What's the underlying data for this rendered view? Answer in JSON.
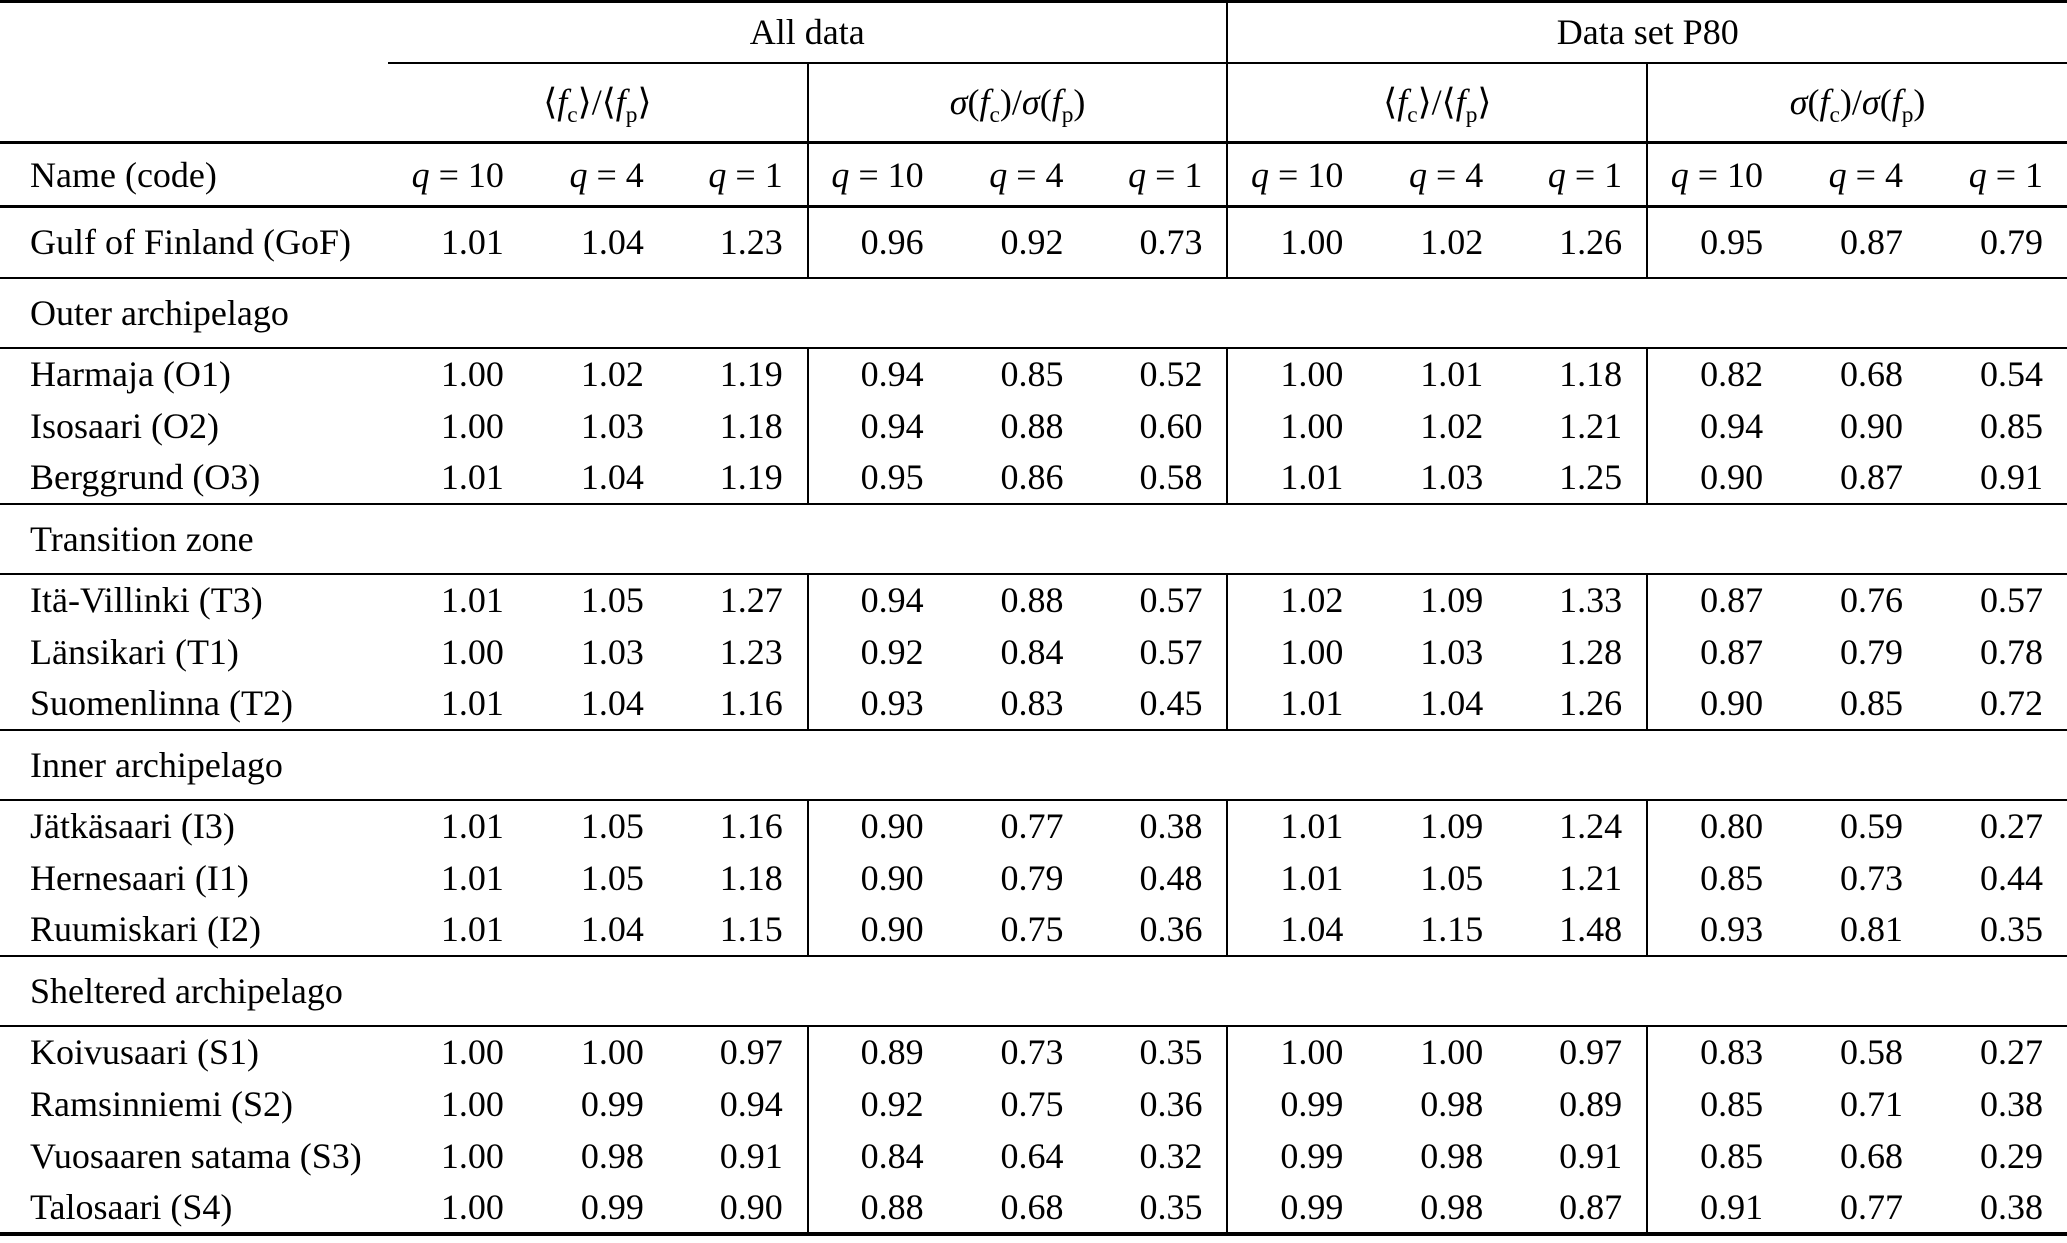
{
  "table": {
    "groups": [
      {
        "label": "All data"
      },
      {
        "label": "Data set P80"
      }
    ],
    "subgroup_labels": {
      "mean": "⟨fc⟩/⟨fp⟩",
      "sigma": "σ(fc)/σ(fp)"
    },
    "name_header": "Name (code)",
    "q_labels": [
      "q = 10",
      "q = 4",
      "q = 1"
    ],
    "rows": [
      {
        "type": "data",
        "name": "Gulf of Finland (GoF)",
        "values": [
          "1.01",
          "1.04",
          "1.23",
          "0.96",
          "0.92",
          "0.73",
          "1.00",
          "1.02",
          "1.26",
          "0.95",
          "0.87",
          "0.79"
        ]
      },
      {
        "type": "section",
        "name": "Outer archipelago"
      },
      {
        "type": "data",
        "name": "Harmaja (O1)",
        "values": [
          "1.00",
          "1.02",
          "1.19",
          "0.94",
          "0.85",
          "0.52",
          "1.00",
          "1.01",
          "1.18",
          "0.82",
          "0.68",
          "0.54"
        ]
      },
      {
        "type": "data",
        "name": "Isosaari (O2)",
        "values": [
          "1.00",
          "1.03",
          "1.18",
          "0.94",
          "0.88",
          "0.60",
          "1.00",
          "1.02",
          "1.21",
          "0.94",
          "0.90",
          "0.85"
        ]
      },
      {
        "type": "data",
        "name": "Berggrund (O3)",
        "values": [
          "1.01",
          "1.04",
          "1.19",
          "0.95",
          "0.86",
          "0.58",
          "1.01",
          "1.03",
          "1.25",
          "0.90",
          "0.87",
          "0.91"
        ]
      },
      {
        "type": "section",
        "name": "Transition zone"
      },
      {
        "type": "data",
        "name": "Itä-Villinki (T3)",
        "values": [
          "1.01",
          "1.05",
          "1.27",
          "0.94",
          "0.88",
          "0.57",
          "1.02",
          "1.09",
          "1.33",
          "0.87",
          "0.76",
          "0.57"
        ]
      },
      {
        "type": "data",
        "name": "Länsikari (T1)",
        "values": [
          "1.00",
          "1.03",
          "1.23",
          "0.92",
          "0.84",
          "0.57",
          "1.00",
          "1.03",
          "1.28",
          "0.87",
          "0.79",
          "0.78"
        ]
      },
      {
        "type": "data",
        "name": "Suomenlinna (T2)",
        "values": [
          "1.01",
          "1.04",
          "1.16",
          "0.93",
          "0.83",
          "0.45",
          "1.01",
          "1.04",
          "1.26",
          "0.90",
          "0.85",
          "0.72"
        ]
      },
      {
        "type": "section",
        "name": "Inner archipelago"
      },
      {
        "type": "data",
        "name": "Jätkäsaari (I3)",
        "values": [
          "1.01",
          "1.05",
          "1.16",
          "0.90",
          "0.77",
          "0.38",
          "1.01",
          "1.09",
          "1.24",
          "0.80",
          "0.59",
          "0.27"
        ]
      },
      {
        "type": "data",
        "name": "Hernesaari (I1)",
        "values": [
          "1.01",
          "1.05",
          "1.18",
          "0.90",
          "0.79",
          "0.48",
          "1.01",
          "1.05",
          "1.21",
          "0.85",
          "0.73",
          "0.44"
        ]
      },
      {
        "type": "data",
        "name": "Ruumiskari (I2)",
        "values": [
          "1.01",
          "1.04",
          "1.15",
          "0.90",
          "0.75",
          "0.36",
          "1.04",
          "1.15",
          "1.48",
          "0.93",
          "0.81",
          "0.35"
        ]
      },
      {
        "type": "section",
        "name": "Sheltered archipelago"
      },
      {
        "type": "data",
        "name": "Koivusaari (S1)",
        "values": [
          "1.00",
          "1.00",
          "0.97",
          "0.89",
          "0.73",
          "0.35",
          "1.00",
          "1.00",
          "0.97",
          "0.83",
          "0.58",
          "0.27"
        ]
      },
      {
        "type": "data",
        "name": "Ramsinniemi (S2)",
        "values": [
          "1.00",
          "0.99",
          "0.94",
          "0.92",
          "0.75",
          "0.36",
          "0.99",
          "0.98",
          "0.89",
          "0.85",
          "0.71",
          "0.38"
        ]
      },
      {
        "type": "data",
        "name": "Vuosaaren satama (S3)",
        "values": [
          "1.00",
          "0.98",
          "0.91",
          "0.84",
          "0.64",
          "0.32",
          "0.99",
          "0.98",
          "0.91",
          "0.85",
          "0.68",
          "0.29"
        ]
      },
      {
        "type": "data",
        "name": "Talosaari (S4)",
        "values": [
          "1.00",
          "0.99",
          "0.90",
          "0.88",
          "0.68",
          "0.35",
          "0.99",
          "0.98",
          "0.87",
          "0.91",
          "0.77",
          "0.38"
        ]
      }
    ]
  }
}
